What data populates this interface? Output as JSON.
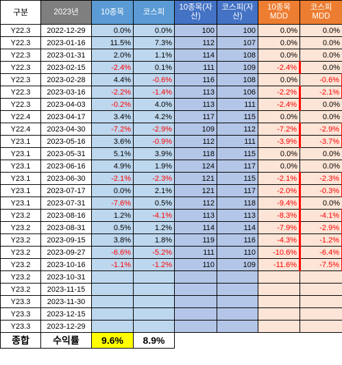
{
  "headers": {
    "gubun": "구분",
    "year": "2023년",
    "ret10": "10종목",
    "kospi": "코스피",
    "asset10": "10종목(자산)",
    "asset_kospi": "코스피(자산)",
    "mdd10": "10종목 MDD",
    "mdd_kospi": "코스피 MDD"
  },
  "rows": [
    {
      "gubun": "Y22.3",
      "date": "2022-12-29",
      "ret10": "0.0%",
      "kospi": "0.0%",
      "asset10": "100",
      "asset_kospi": "100",
      "mdd10": "0.0%",
      "mdd_kospi": "0.0%"
    },
    {
      "gubun": "Y22.3",
      "date": "2023-01-16",
      "ret10": "11.5%",
      "kospi": "7.3%",
      "asset10": "112",
      "asset_kospi": "107",
      "mdd10": "0.0%",
      "mdd_kospi": "0.0%"
    },
    {
      "gubun": "Y22.3",
      "date": "2023-01-31",
      "ret10": "2.0%",
      "kospi": "1.1%",
      "asset10": "114",
      "asset_kospi": "108",
      "mdd10": "0.0%",
      "mdd_kospi": "0.0%"
    },
    {
      "gubun": "Y22.3",
      "date": "2023-02-15",
      "ret10": "-2.4%",
      "kospi": "0.1%",
      "asset10": "111",
      "asset_kospi": "109",
      "mdd10": "-2.4%",
      "mdd_kospi": "0.0%"
    },
    {
      "gubun": "Y22.3",
      "date": "2023-02-28",
      "ret10": "4.4%",
      "kospi": "-0.6%",
      "asset10": "116",
      "asset_kospi": "108",
      "mdd10": "0.0%",
      "mdd_kospi": "-0.6%"
    },
    {
      "gubun": "Y22.3",
      "date": "2023-03-16",
      "ret10": "-2.2%",
      "kospi": "-1.4%",
      "asset10": "113",
      "asset_kospi": "106",
      "mdd10": "-2.2%",
      "mdd_kospi": "-2.1%"
    },
    {
      "gubun": "Y22.3",
      "date": "2023-04-03",
      "ret10": "-0.2%",
      "kospi": "4.0%",
      "asset10": "113",
      "asset_kospi": "111",
      "mdd10": "-2.4%",
      "mdd_kospi": "0.0%"
    },
    {
      "gubun": "Y22.4",
      "date": "2023-04-17",
      "ret10": "3.4%",
      "kospi": "4.2%",
      "asset10": "117",
      "asset_kospi": "115",
      "mdd10": "0.0%",
      "mdd_kospi": "0.0%"
    },
    {
      "gubun": "Y22.4",
      "date": "2023-04-30",
      "ret10": "-7.2%",
      "kospi": "-2.9%",
      "asset10": "109",
      "asset_kospi": "112",
      "mdd10": "-7.2%",
      "mdd_kospi": "-2.9%"
    },
    {
      "gubun": "Y23.1",
      "date": "2023-05-16",
      "ret10": "3.6%",
      "kospi": "-0.9%",
      "asset10": "112",
      "asset_kospi": "111",
      "mdd10": "-3.9%",
      "mdd_kospi": "-3.7%"
    },
    {
      "gubun": "Y23.1",
      "date": "2023-05-31",
      "ret10": "5.1%",
      "kospi": "3.9%",
      "asset10": "118",
      "asset_kospi": "115",
      "mdd10": "0.0%",
      "mdd_kospi": "0.0%"
    },
    {
      "gubun": "Y23.1",
      "date": "2023-06-16",
      "ret10": "4.9%",
      "kospi": "1.9%",
      "asset10": "124",
      "asset_kospi": "117",
      "mdd10": "0.0%",
      "mdd_kospi": "0.0%"
    },
    {
      "gubun": "Y23.1",
      "date": "2023-06-30",
      "ret10": "-2.1%",
      "kospi": "-2.3%",
      "asset10": "121",
      "asset_kospi": "115",
      "mdd10": "-2.1%",
      "mdd_kospi": "-2.3%"
    },
    {
      "gubun": "Y23.1",
      "date": "2023-07-17",
      "ret10": "0.0%",
      "kospi": "2.1%",
      "asset10": "121",
      "asset_kospi": "117",
      "mdd10": "-2.0%",
      "mdd_kospi": "-0.3%"
    },
    {
      "gubun": "Y23.1",
      "date": "2023-07-31",
      "ret10": "-7.6%",
      "kospi": "0.5%",
      "asset10": "112",
      "asset_kospi": "118",
      "mdd10": "-9.4%",
      "mdd_kospi": "0.0%"
    },
    {
      "gubun": "Y23.2",
      "date": "2023-08-16",
      "ret10": "1.2%",
      "kospi": "-4.1%",
      "asset10": "113",
      "asset_kospi": "113",
      "mdd10": "-8.3%",
      "mdd_kospi": "-4.1%"
    },
    {
      "gubun": "Y23.2",
      "date": "2023-08-31",
      "ret10": "0.5%",
      "kospi": "1.2%",
      "asset10": "114",
      "asset_kospi": "114",
      "mdd10": "-7.9%",
      "mdd_kospi": "-2.9%"
    },
    {
      "gubun": "Y23.2",
      "date": "2023-09-15",
      "ret10": "3.8%",
      "kospi": "1.8%",
      "asset10": "119",
      "asset_kospi": "116",
      "mdd10": "-4.3%",
      "mdd_kospi": "-1.2%"
    },
    {
      "gubun": "Y23.2",
      "date": "2023-09-27",
      "ret10": "-6.6%",
      "kospi": "-5.2%",
      "asset10": "111",
      "asset_kospi": "110",
      "mdd10": "-10.6%",
      "mdd_kospi": "-6.4%"
    },
    {
      "gubun": "Y23.2",
      "date": "2023-10-16",
      "ret10": "-1.1%",
      "kospi": "-1.2%",
      "asset10": "110",
      "asset_kospi": "109",
      "mdd10": "-11.6%",
      "mdd_kospi": "-7.5%"
    },
    {
      "gubun": "Y23.2",
      "date": "2023-10-31",
      "ret10": "",
      "kospi": "",
      "asset10": "",
      "asset_kospi": "",
      "mdd10": "",
      "mdd_kospi": ""
    },
    {
      "gubun": "Y23.2",
      "date": "2023-11-15",
      "ret10": "",
      "kospi": "",
      "asset10": "",
      "asset_kospi": "",
      "mdd10": "",
      "mdd_kospi": ""
    },
    {
      "gubun": "Y23.3",
      "date": "2023-11-30",
      "ret10": "",
      "kospi": "",
      "asset10": "",
      "asset_kospi": "",
      "mdd10": "",
      "mdd_kospi": ""
    },
    {
      "gubun": "Y23.3",
      "date": "2023-12-15",
      "ret10": "",
      "kospi": "",
      "asset10": "",
      "asset_kospi": "",
      "mdd10": "",
      "mdd_kospi": ""
    },
    {
      "gubun": "Y23.3",
      "date": "2023-12-29",
      "ret10": "",
      "kospi": "",
      "asset10": "",
      "asset_kospi": "",
      "mdd10": "",
      "mdd_kospi": ""
    }
  ],
  "summary": {
    "label": "종합",
    "sublabel": "수익률",
    "ret10": "9.6%",
    "kospi": "8.9%"
  },
  "colors": {
    "header_year": "#7f7f7f",
    "header_ret": "#5b9bd5",
    "header_asset": "#4472c4",
    "header_mdd": "#ed7d31",
    "fill_ret": "#bdd7ee",
    "fill_asset": "#b4c6e7",
    "fill_mdd": "#fce4d6",
    "negative_text": "#ff0000",
    "highlight_yield": "#ffff00"
  }
}
